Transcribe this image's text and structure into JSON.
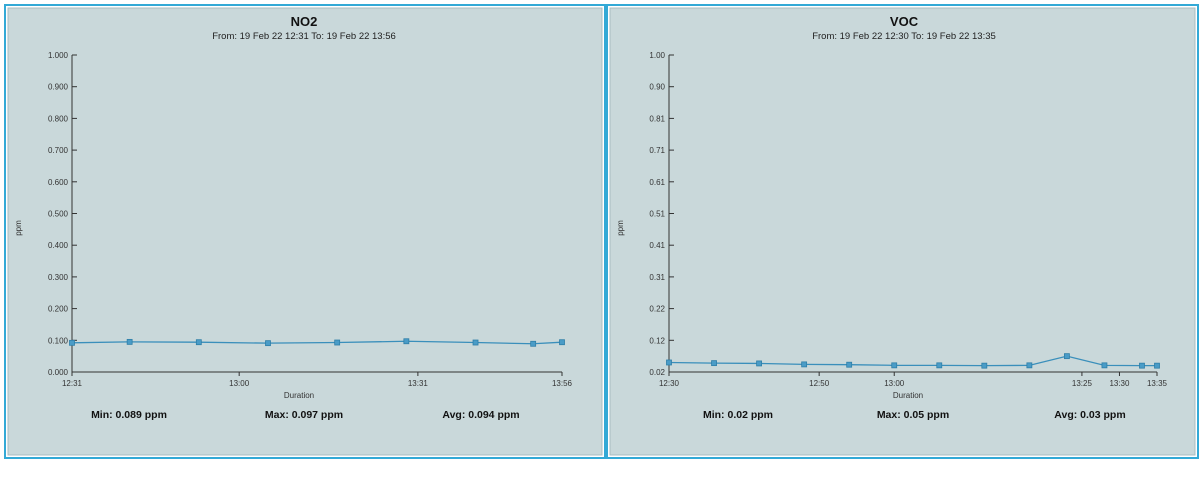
{
  "chart_data": [
    {
      "type": "line",
      "title": "NO2",
      "subtitle": "From: 19 Feb 22 12:31 To: 19 Feb 22 13:56",
      "ylabel": "ppm",
      "xlabel": "Duration",
      "ylim": [
        0,
        1
      ],
      "y_ticks": [
        "0.000",
        "0.100",
        "0.200",
        "0.300",
        "0.400",
        "0.500",
        "0.600",
        "0.700",
        "0.800",
        "0.900",
        "1.000"
      ],
      "x_ticks": [
        "12:31",
        "13:00",
        "13:31",
        "13:56"
      ],
      "x_tick_minutes": [
        0,
        29,
        60,
        85
      ],
      "x_range_minutes": [
        0,
        85
      ],
      "series": [
        {
          "x_minutes": [
            0,
            10,
            22,
            34,
            46,
            58,
            70,
            80,
            85
          ],
          "values": [
            0.092,
            0.095,
            0.094,
            0.091,
            0.093,
            0.097,
            0.093,
            0.089,
            0.094
          ]
        }
      ],
      "stats": {
        "min": "Min: 0.089 ppm",
        "max": "Max: 0.097 ppm",
        "avg": "Avg: 0.094 ppm"
      },
      "grid": false
    },
    {
      "type": "line",
      "title": "VOC",
      "subtitle": "From: 19 Feb 22 12:30 To: 19 Feb 22 13:35",
      "ylabel": "ppm",
      "xlabel": "Duration",
      "ylim": [
        0,
        1
      ],
      "y_ticks": [
        "0.02",
        "0.12",
        "0.22",
        "0.31",
        "0.41",
        "0.51",
        "0.61",
        "0.71",
        "0.81",
        "0.90",
        "1.00"
      ],
      "x_ticks": [
        "12:30",
        "12:50",
        "13:00",
        "13:25",
        "13:30",
        "13:35"
      ],
      "x_tick_minutes": [
        0,
        20,
        30,
        55,
        60,
        65
      ],
      "x_range_minutes": [
        0,
        65
      ],
      "series": [
        {
          "x_minutes": [
            0,
            6,
            12,
            18,
            24,
            30,
            36,
            42,
            48,
            53,
            58,
            63,
            65
          ],
          "values": [
            0.03,
            0.028,
            0.027,
            0.024,
            0.023,
            0.021,
            0.021,
            0.02,
            0.021,
            0.05,
            0.021,
            0.02,
            0.02
          ]
        }
      ],
      "stats": {
        "min": "Min: 0.02 ppm",
        "max": "Max: 0.05 ppm",
        "avg": "Avg: 0.03 ppm"
      },
      "grid": false
    }
  ]
}
